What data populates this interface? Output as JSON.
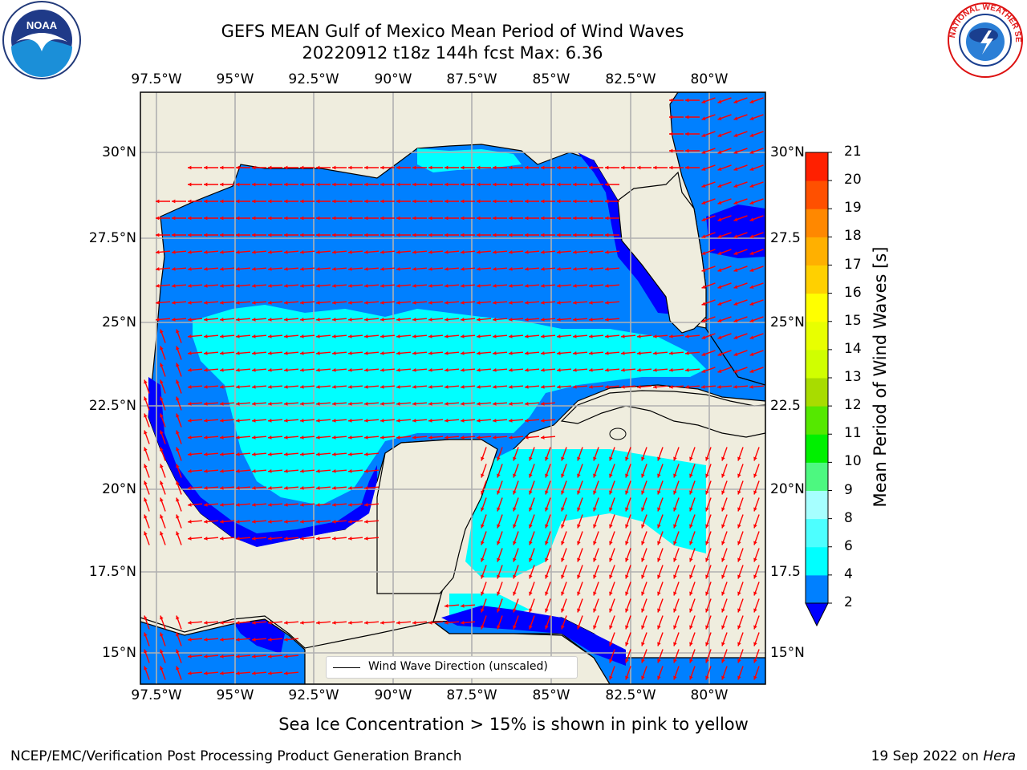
{
  "title": {
    "line1": "GEFS MEAN Gulf of Mexico Mean Period of Wind Waves",
    "line2": "20220912 t18z 144h fcst   Max: 6.36"
  },
  "logos": {
    "left": {
      "name": "noaa-logo",
      "text": "NOAA"
    },
    "right": {
      "name": "national-weather-service-logo",
      "text": "NATIONAL WEATHER SERVICE"
    }
  },
  "map": {
    "lon_ticks": [
      "97.5°W",
      "95°W",
      "92.5°W",
      "90°W",
      "87.5°W",
      "85°W",
      "82.5°W",
      "80°W"
    ],
    "lat_ticks_left": [
      "30°N",
      "27.5°N",
      "25°N",
      "22.5°N",
      "20°N",
      "17.5°N",
      "15°N"
    ],
    "lat_ticks_right": [
      "30°N",
      "27.5",
      "25°N",
      "22.5",
      "20°N",
      "17.5",
      "15°N"
    ],
    "land_color": "#efedde",
    "gridline_color": "#b0b0b0",
    "arrow_color": "#ff0000",
    "legend_label": "Wind Wave Direction (unscaled)"
  },
  "colorbar": {
    "label": "Mean Period of Wind Waves [s]",
    "ticks": [
      "2",
      "4",
      "6",
      "8",
      "9",
      "10",
      "11",
      "12",
      "13",
      "14",
      "15",
      "16",
      "17",
      "18",
      "19",
      "20",
      "21"
    ],
    "extend_color": "#0000ff",
    "colors": [
      "#0080ff",
      "#00ffff",
      "#4dffff",
      "#a6ffff",
      "#4df880",
      "#00f000",
      "#55e800",
      "#a8dc00",
      "#d0ff00",
      "#e8ff00",
      "#ffff00",
      "#ffd000",
      "#ffb000",
      "#ff8800",
      "#ff5000",
      "#ff2000"
    ]
  },
  "note": "Sea Ice Concentration > 15% is shown in pink to yellow",
  "footer": {
    "left": "NCEP/EMC/Verification Post Processing Product Generation Branch",
    "right_prefix": "19 Sep 2022 on ",
    "right_host": "Hera"
  }
}
